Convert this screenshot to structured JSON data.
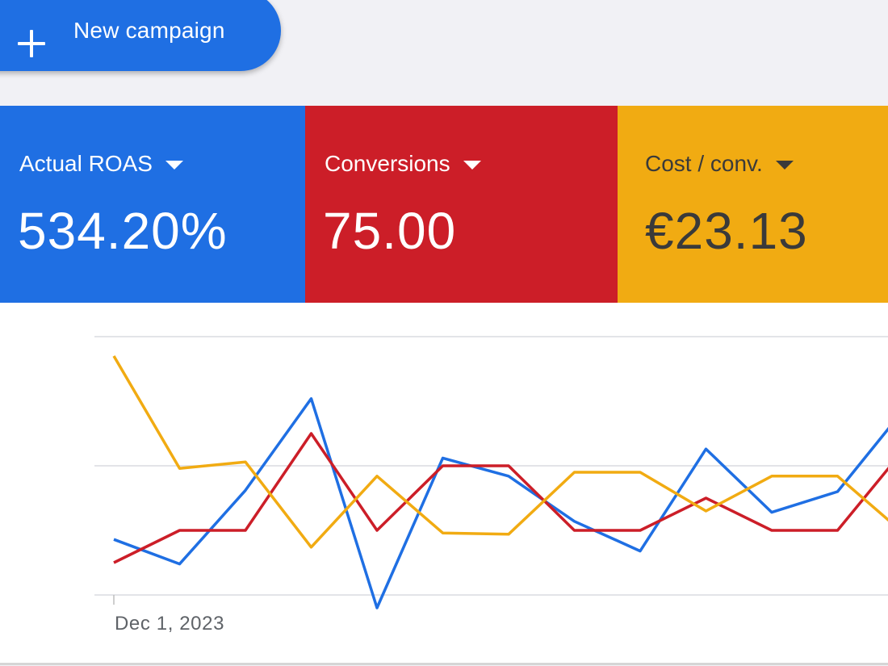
{
  "toolbar": {
    "new_campaign_label": "New campaign",
    "new_campaign_icon": "plus-icon"
  },
  "scorecards": [
    {
      "label": "Actual ROAS",
      "value": "534.20%",
      "color": "#1f6fe3"
    },
    {
      "label": "Conversions",
      "value": "75.00",
      "color": "#cc1e28"
    },
    {
      "label": "Cost / conv.",
      "value": "€23.13",
      "color": "#f1ab12"
    }
  ],
  "chart": {
    "start_date_label": "Dec 1, 2023",
    "series": [
      {
        "color": "#1f6fe3",
        "values": [
          0.43,
          0.24,
          0.81,
          1.52,
          -0.1,
          1.06,
          0.92,
          0.57,
          0.34,
          1.13,
          0.64,
          0.8,
          1.43
        ]
      },
      {
        "color": "#cc1e28",
        "values": [
          0.25,
          0.5,
          0.5,
          1.25,
          0.5,
          1.0,
          1.0,
          0.5,
          0.5,
          0.75,
          0.5,
          0.5,
          1.12
        ]
      },
      {
        "color": "#f1ab12",
        "values": [
          1.85,
          0.98,
          1.03,
          0.37,
          0.92,
          0.48,
          0.47,
          0.95,
          0.95,
          0.65,
          0.92,
          0.92,
          0.48
        ]
      }
    ]
  }
}
